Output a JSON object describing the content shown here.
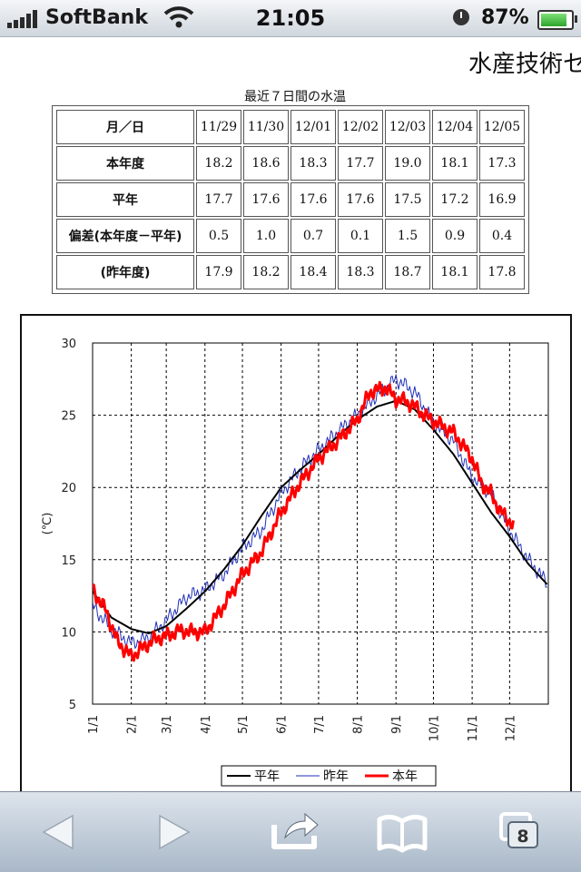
{
  "status_bar": {
    "carrier": "SoftBank",
    "time": "21:05",
    "battery": "87%",
    "battery_level": 0.87
  },
  "page": {
    "site_title": "水産技術セ"
  },
  "table": {
    "caption": "最近７日間の水温",
    "header_label": "月／日",
    "dates": [
      "11/29",
      "11/30",
      "12/01",
      "12/02",
      "12/03",
      "12/04",
      "12/05"
    ],
    "rows": [
      {
        "label": "本年度",
        "values": [
          "18.2",
          "18.6",
          "18.3",
          "17.7",
          "19.0",
          "18.1",
          "17.3"
        ]
      },
      {
        "label": "平年",
        "values": [
          "17.7",
          "17.6",
          "17.6",
          "17.6",
          "17.5",
          "17.2",
          "16.9"
        ]
      },
      {
        "label": "偏差(本年度－平年)",
        "values": [
          "0.5",
          "1.0",
          "0.7",
          "0.1",
          "1.5",
          "0.9",
          "0.4"
        ]
      },
      {
        "label": "(昨年度)",
        "values": [
          "17.9",
          "18.2",
          "18.4",
          "18.3",
          "18.7",
          "18.1",
          "17.8"
        ]
      }
    ]
  },
  "chart_data": {
    "type": "line",
    "ylabel": "(℃)",
    "ylim": [
      5,
      30
    ],
    "yticks": [
      "5",
      "10",
      "15",
      "20",
      "25",
      "30"
    ],
    "x_tick_labels": [
      "1/1",
      "2/1",
      "3/1",
      "4/1",
      "5/1",
      "6/1",
      "7/1",
      "8/1",
      "9/1",
      "10/1",
      "11/1",
      "12/1"
    ],
    "x_tick_days": [
      0,
      31,
      59,
      90,
      120,
      151,
      181,
      212,
      243,
      273,
      304,
      334
    ],
    "xlim": [
      0,
      365
    ],
    "grid": true,
    "legend_position": "bottom-center",
    "series": [
      {
        "name": "平年",
        "color": "#000000",
        "width": 2,
        "x": [
          0,
          15,
          31,
          45,
          59,
          75,
          90,
          105,
          120,
          135,
          151,
          166,
          181,
          197,
          212,
          228,
          243,
          258,
          273,
          289,
          304,
          319,
          334,
          349,
          364
        ],
        "y": [
          12.8,
          11.0,
          10.2,
          9.9,
          10.4,
          11.6,
          12.8,
          14.3,
          16.0,
          18.0,
          20.0,
          21.2,
          22.3,
          23.6,
          24.7,
          25.6,
          26.0,
          25.4,
          24.0,
          22.3,
          20.3,
          18.3,
          16.6,
          14.7,
          13.3
        ]
      },
      {
        "name": "昨年",
        "color": "#1f2fb8",
        "width": 1,
        "x": [
          0,
          15,
          31,
          45,
          59,
          75,
          90,
          105,
          120,
          135,
          151,
          166,
          181,
          197,
          212,
          228,
          243,
          258,
          273,
          289,
          304,
          319,
          334,
          349,
          364
        ],
        "y": [
          11.8,
          10.2,
          9.2,
          9.6,
          10.8,
          12.4,
          12.9,
          14.0,
          15.8,
          17.0,
          19.6,
          21.3,
          22.6,
          23.9,
          25.0,
          26.4,
          27.5,
          26.6,
          24.5,
          23.2,
          20.7,
          19.6,
          17.0,
          15.0,
          13.4
        ]
      },
      {
        "name": "本年",
        "color": "#ff0000",
        "width": 3,
        "x": [
          0,
          10,
          20,
          31,
          40,
          50,
          59,
          70,
          80,
          90,
          105,
          120,
          135,
          151,
          166,
          181,
          197,
          212,
          222,
          235,
          243,
          250,
          258,
          266,
          273,
          289,
          304,
          312,
          319,
          326,
          334,
          337
        ],
        "y": [
          12.9,
          11.6,
          9.3,
          8.3,
          8.9,
          9.5,
          9.7,
          10.1,
          10.0,
          10.0,
          11.8,
          14.0,
          15.5,
          18.3,
          20.3,
          22.0,
          23.3,
          24.7,
          26.6,
          26.9,
          26.1,
          26.0,
          25.6,
          25.0,
          24.6,
          23.8,
          22.0,
          20.2,
          19.6,
          18.4,
          17.7,
          17.3
        ]
      }
    ]
  }
}
